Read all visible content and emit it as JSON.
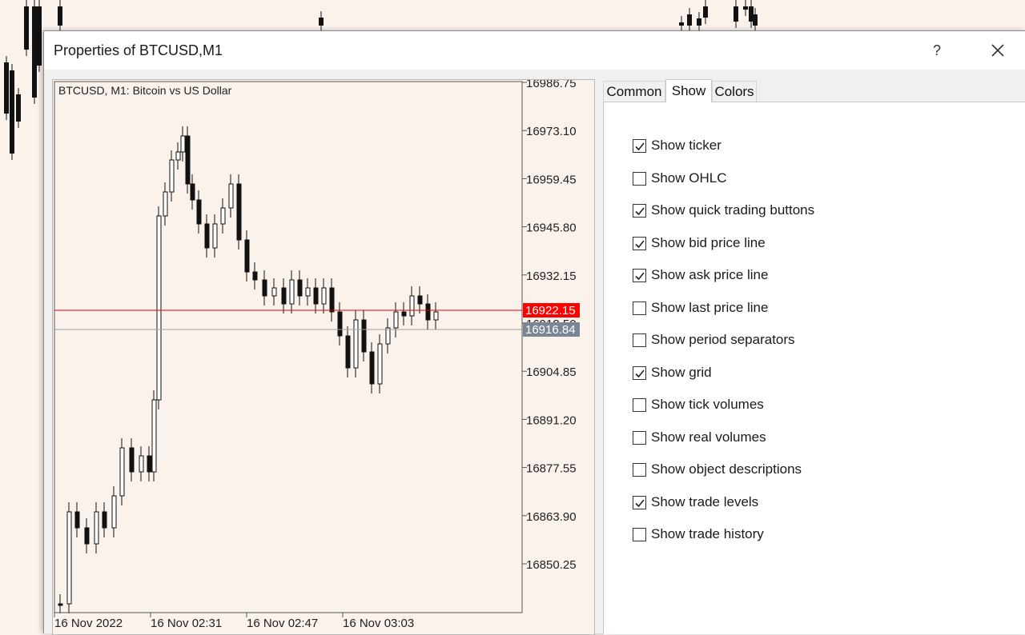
{
  "window": {
    "title": "Properties of BTCUSD,M1",
    "help_label": "?",
    "close_icon": "close-icon"
  },
  "preview": {
    "header": "BTCUSD, M1:  Bitcoin vs US Dollar",
    "price_labels": [
      "16986.75",
      "16973.10",
      "16959.45",
      "16945.80",
      "16932.15",
      "16918.50",
      "16904.85",
      "16891.20",
      "16877.55",
      "16863.90",
      "16850.25"
    ],
    "bid_label": "16922.15",
    "ask_label": "16916.84",
    "time_labels": [
      "16 Nov 2022",
      "16 Nov 02:31",
      "16 Nov 02:47",
      "16 Nov 03:03"
    ],
    "colors": {
      "bid_line": "#e00000",
      "ask_line": "#a0a0a0",
      "ask_badge": "#7a8694",
      "bg": "#fbf2ec"
    }
  },
  "tabs": [
    {
      "label": "Common",
      "active": false
    },
    {
      "label": "Show",
      "active": true
    },
    {
      "label": "Colors",
      "active": false
    }
  ],
  "options": [
    {
      "label": "Show ticker",
      "checked": true
    },
    {
      "label": "Show OHLC",
      "checked": false
    },
    {
      "label": "Show quick trading buttons",
      "checked": true
    },
    {
      "label": "Show bid price line",
      "checked": true
    },
    {
      "label": "Show ask price line",
      "checked": true
    },
    {
      "label": "Show last price line",
      "checked": false
    },
    {
      "label": "Show period separators",
      "checked": false
    },
    {
      "label": "Show grid",
      "checked": true
    },
    {
      "label": "Show tick volumes",
      "checked": false
    },
    {
      "label": "Show real volumes",
      "checked": false
    },
    {
      "label": "Show object descriptions",
      "checked": false
    },
    {
      "label": "Show trade levels",
      "checked": true
    },
    {
      "label": "Show trade history",
      "checked": false
    }
  ]
}
